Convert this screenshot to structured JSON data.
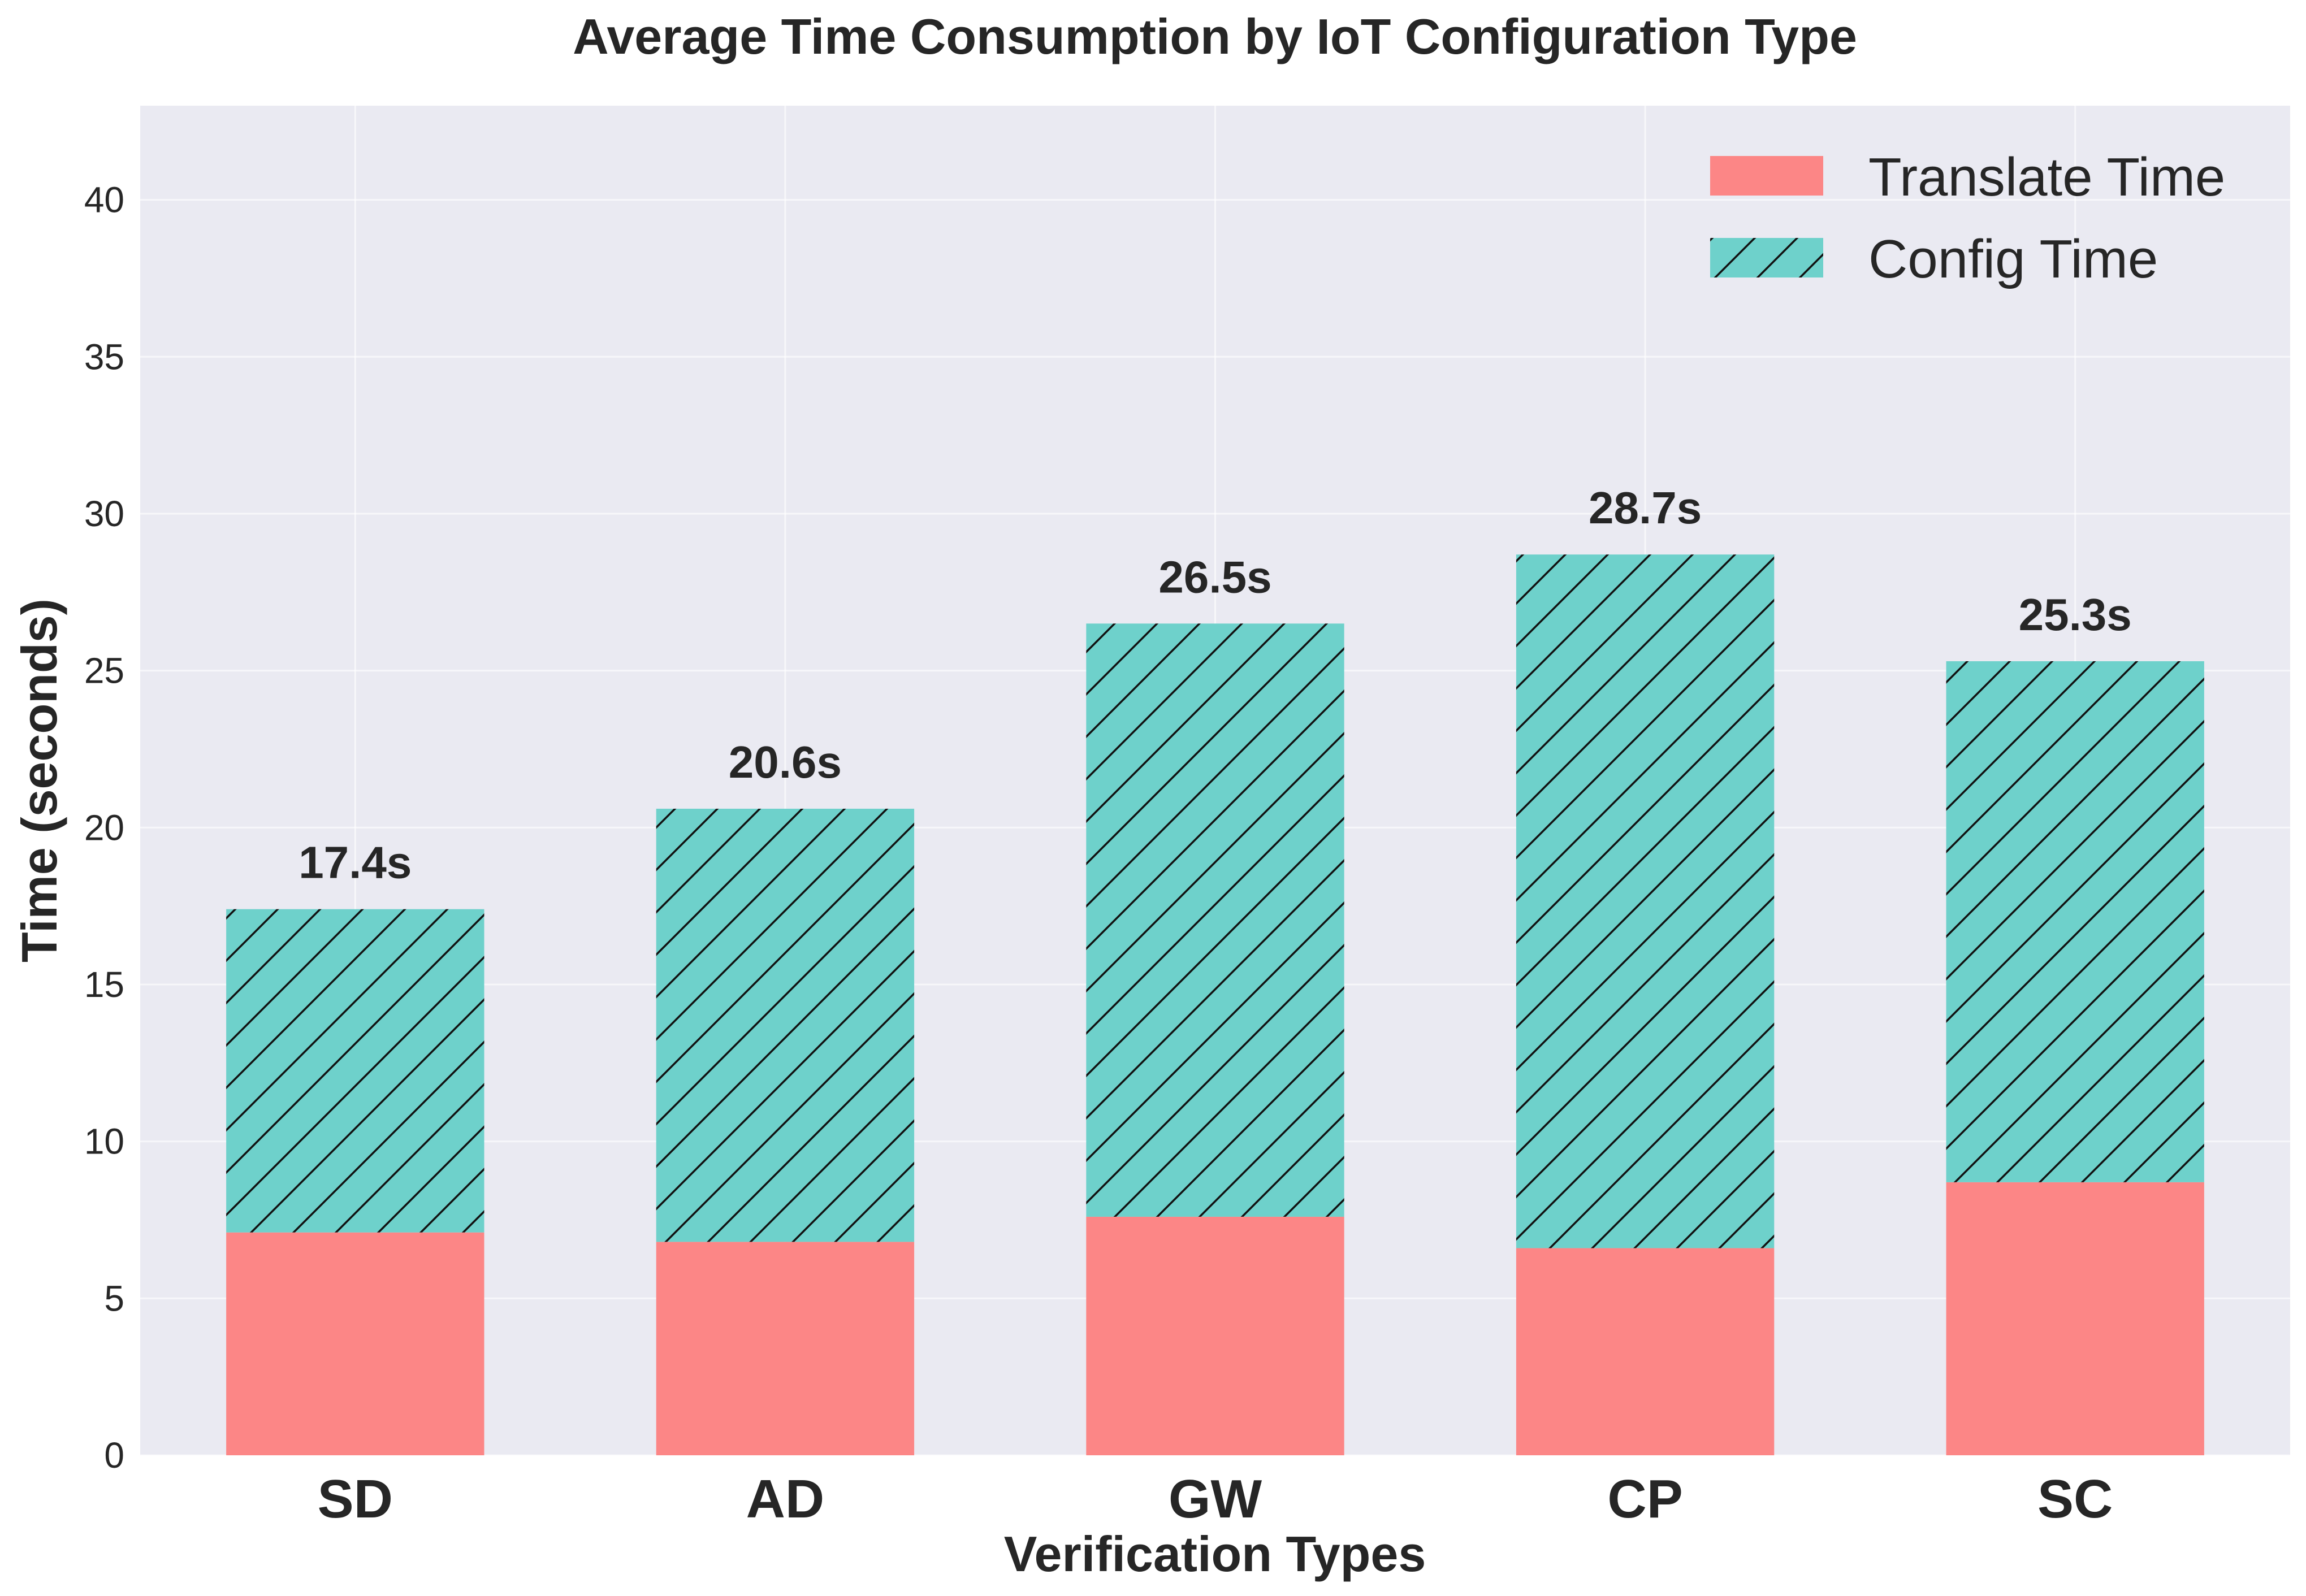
{
  "chart_data": {
    "type": "bar",
    "stacked": true,
    "title": "Average Time Consumption by IoT Configuration Type",
    "xlabel": "Verification Types",
    "ylabel": "Time (seconds)",
    "categories": [
      "SD",
      "AD",
      "GW",
      "CP",
      "SC"
    ],
    "series": [
      {
        "name": "Translate Time",
        "values": [
          7.1,
          6.8,
          7.6,
          6.6,
          8.7
        ],
        "color": "#fc8686",
        "pattern": "none"
      },
      {
        "name": "Config Time",
        "values": [
          10.3,
          13.8,
          18.9,
          22.1,
          16.6
        ],
        "color": "#6ed1cb",
        "pattern": "diagonal-hatch"
      }
    ],
    "total_labels": [
      "17.4s",
      "20.6s",
      "26.5s",
      "28.7s",
      "25.3s"
    ],
    "ylim": [
      0,
      43
    ],
    "yticks": [
      0,
      5,
      10,
      15,
      20,
      25,
      30,
      35,
      40
    ],
    "grid": true,
    "legend_position": "top-right",
    "colors": {
      "plot_background": "#eaeaf2",
      "grid": "#ffffff",
      "text": "#262626"
    }
  }
}
